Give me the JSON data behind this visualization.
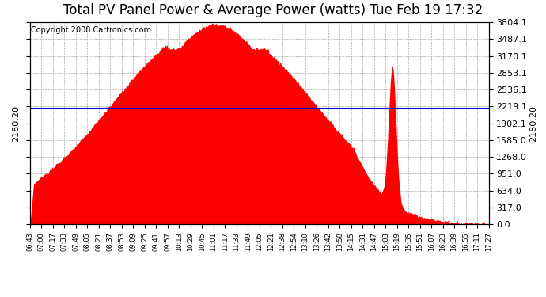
{
  "title": "Total PV Panel Power & Average Power (watts) Tue Feb 19 17:32",
  "copyright": "Copyright 2008 Cartronics.com",
  "average_power": 2180.2,
  "y_max": 3804.1,
  "y_ticks": [
    0.0,
    317.0,
    634.0,
    951.0,
    1268.0,
    1585.0,
    1902.1,
    2219.1,
    2536.1,
    2853.1,
    3170.1,
    3487.1,
    3804.1
  ],
  "background_color": "#ffffff",
  "fill_color": "#ff0000",
  "line_color": "#0000cc",
  "grid_color": "#888888",
  "title_fontsize": 12,
  "copyright_fontsize": 7,
  "avg_label_fontsize": 8,
  "ytick_fontsize": 8,
  "xtick_fontsize": 6,
  "x_tick_labels": [
    "06:43",
    "07:00",
    "07:17",
    "07:33",
    "07:49",
    "08:05",
    "08:21",
    "08:37",
    "08:53",
    "09:09",
    "09:25",
    "09:41",
    "09:57",
    "10:13",
    "10:29",
    "10:45",
    "11:01",
    "11:17",
    "11:33",
    "11:49",
    "12:05",
    "12:21",
    "12:38",
    "12:54",
    "13:10",
    "13:26",
    "13:42",
    "13:58",
    "14:15",
    "14:31",
    "14:47",
    "15:03",
    "15:19",
    "15:35",
    "15:51",
    "16:07",
    "16:23",
    "16:39",
    "16:55",
    "17:11",
    "17:27"
  ],
  "n_points": 500
}
